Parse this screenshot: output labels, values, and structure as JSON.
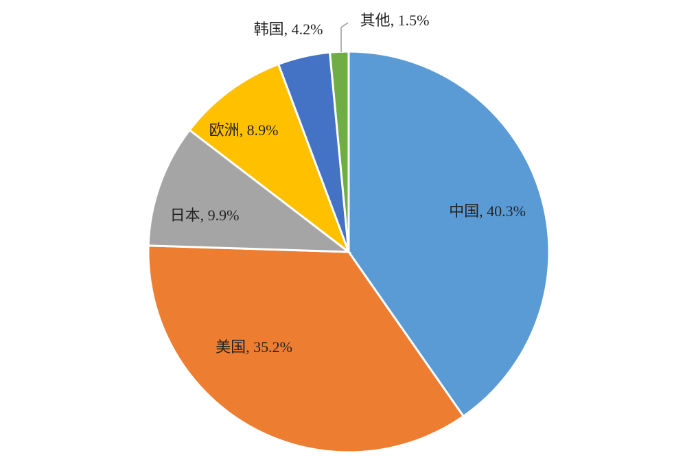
{
  "chart_data": {
    "type": "pie",
    "values": [
      40.3,
      35.2,
      9.9,
      8.9,
      4.2,
      1.5
    ],
    "value_labels": [
      "中国, 40.3%",
      "美国, 35.2%",
      "日本, 9.9%",
      "欧洲, 8.9%",
      "韩国, 4.2%",
      "其他, 1.5%"
    ],
    "colors": [
      "#5b9bd5",
      "#ed7d31",
      "#a5a5a5",
      "#ffc000",
      "#4472c4",
      "#70ad47"
    ]
  }
}
